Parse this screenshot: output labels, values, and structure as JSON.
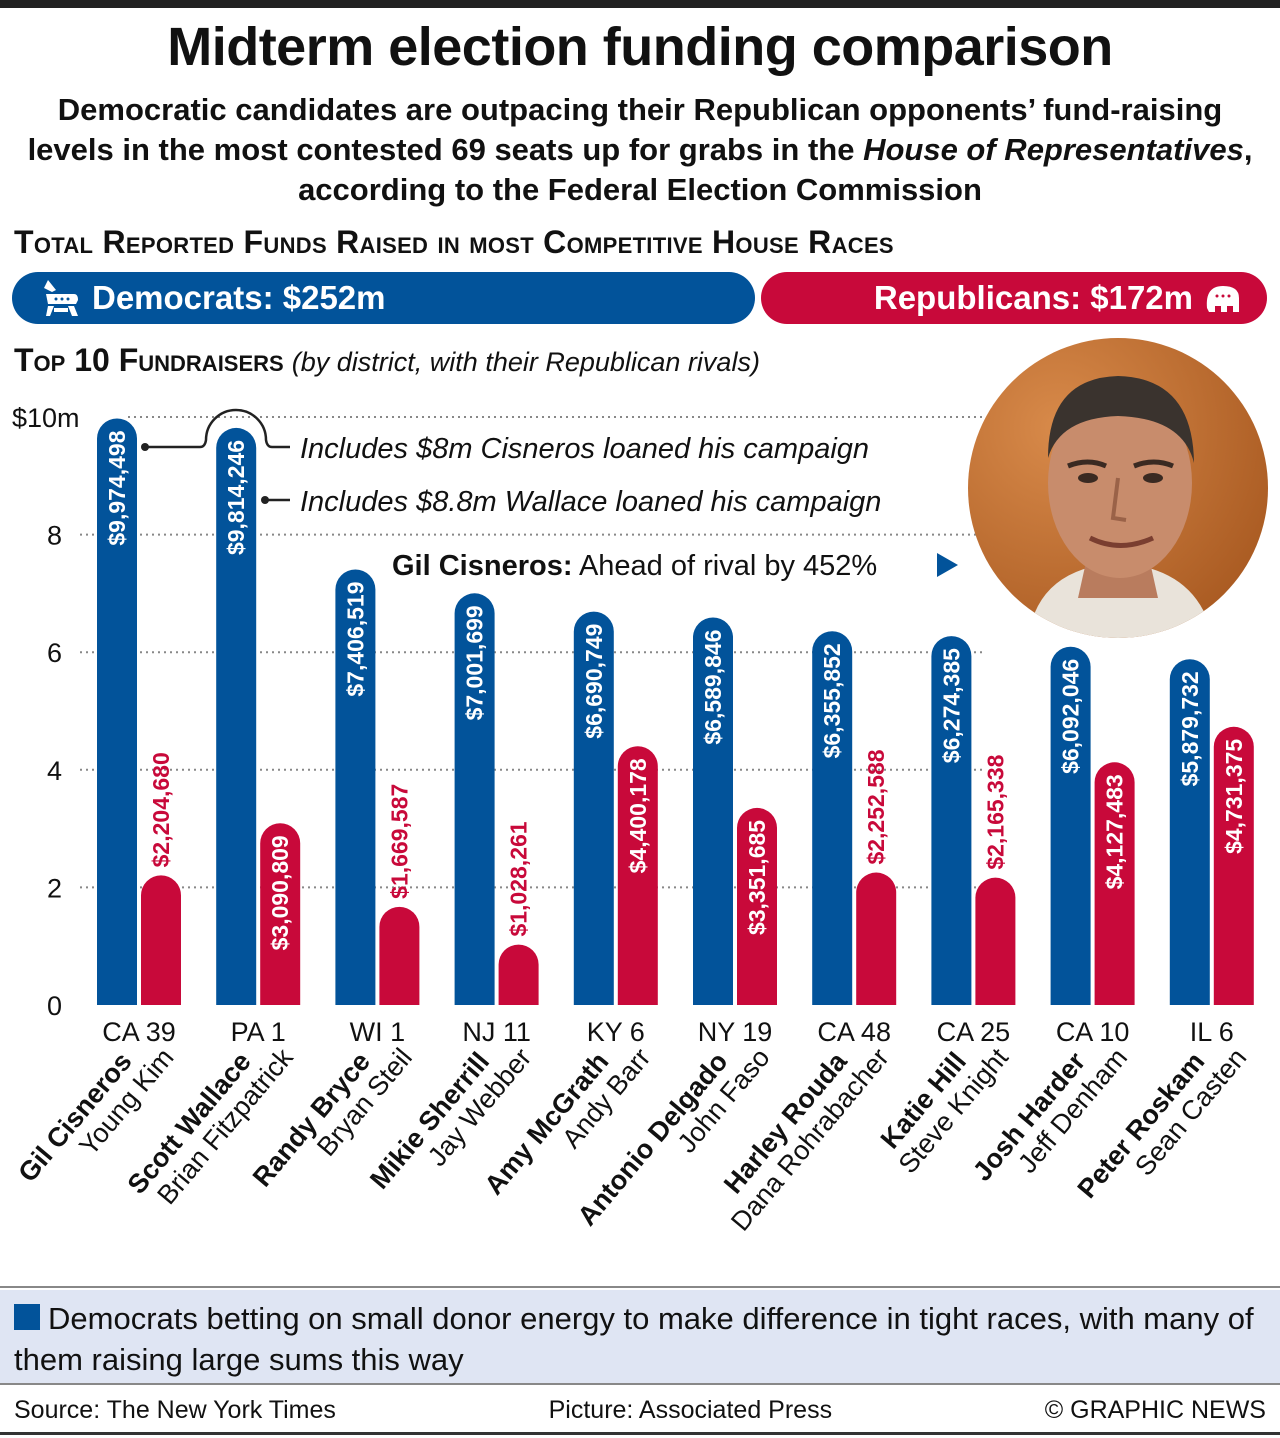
{
  "header": {
    "title": "Midterm election funding comparison",
    "subtitle_1": "Democratic candidates are outpacing their Republican opponents’ fund-raising levels in the most contested 69 seats up for grabs in the ",
    "subtitle_italic": "House of Representatives",
    "subtitle_2": ", according to the Federal Election Commission",
    "section_title": "Total Reported Funds Raised in most Competitive House Races"
  },
  "totals": {
    "democrats_label": "Democrats: $252m",
    "republicans_label": "Republicans: $172m",
    "dem_color": "#02539a",
    "rep_color": "#c8093a"
  },
  "top10": {
    "title": "Top 10 Fundraisers",
    "subtitle": "(by district, with their Republican rivals)"
  },
  "annotations": {
    "cisneros_loan": "Includes $8m Cisneros loaned his campaign",
    "wallace_loan": "Includes $8.8m Wallace loaned his campaign",
    "photo_caption_name": "Gil Cisneros:",
    "photo_caption_text": " Ahead of rival by 452%"
  },
  "chart_data": {
    "type": "bar",
    "title": "Top 10 Fundraisers",
    "ylabel": "$10m",
    "ylim": [
      0,
      10
    ],
    "yticks": [
      "0",
      "2",
      "4",
      "6",
      "8",
      "$10m"
    ],
    "yticks_values": [
      0,
      2,
      4,
      6,
      8,
      10
    ],
    "grid": true,
    "categories": [
      "CA 39",
      "PA 1",
      "WI 1",
      "NJ 11",
      "KY 6",
      "NY 19",
      "CA 48",
      "CA 25",
      "CA 10",
      "IL 6"
    ],
    "democrat_names": [
      "Gil Cisneros",
      "Scott Wallace",
      "Randy Bryce",
      "Mikie Sherrill",
      "Amy McGrath",
      "Antonio Delgado",
      "Harley Rouda",
      "Katie Hill",
      "Josh Harder",
      "Peter Roskam"
    ],
    "republican_names": [
      "Young Kim",
      "Brian Fitzpatrick",
      "Bryan Steil",
      "Jay Webber",
      "Andy Barr",
      "John Faso",
      "Dana Rohrabacher",
      "Steve Knight",
      "Jeff Denham",
      "Sean Casten"
    ],
    "series": [
      {
        "name": "Democrats",
        "color": "#02539a",
        "values": [
          9974498,
          9814246,
          7406519,
          7001699,
          6690749,
          6589846,
          6355852,
          6274385,
          6092046,
          5879732
        ],
        "labels": [
          "$9,974,498",
          "$9,814,246",
          "$7,406,519",
          "$7,001,699",
          "$6,690,749",
          "$6,589,846",
          "$6,355,852",
          "$6,274,385",
          "$6,092,046",
          "$5,879,732"
        ]
      },
      {
        "name": "Republicans",
        "color": "#c8093a",
        "values": [
          2204680,
          3090809,
          1669587,
          1028261,
          4400178,
          3351685,
          2252588,
          2165338,
          4127483,
          4731375
        ],
        "labels": [
          "$2,204,680",
          "$3,090,809",
          "$1,669,587",
          "$1,028,261",
          "$4,400,178",
          "$3,351,685",
          "$2,252,588",
          "$2,165,338",
          "$4,127,483",
          "$4,731,375"
        ]
      }
    ]
  },
  "footer": {
    "note": "Democrats betting on small donor energy to make difference in tight races, with many of them raising large sums this way",
    "source": "Source: The New York Times",
    "picture": "Picture: Associated Press",
    "copyright": "© GRAPHIC NEWS"
  }
}
